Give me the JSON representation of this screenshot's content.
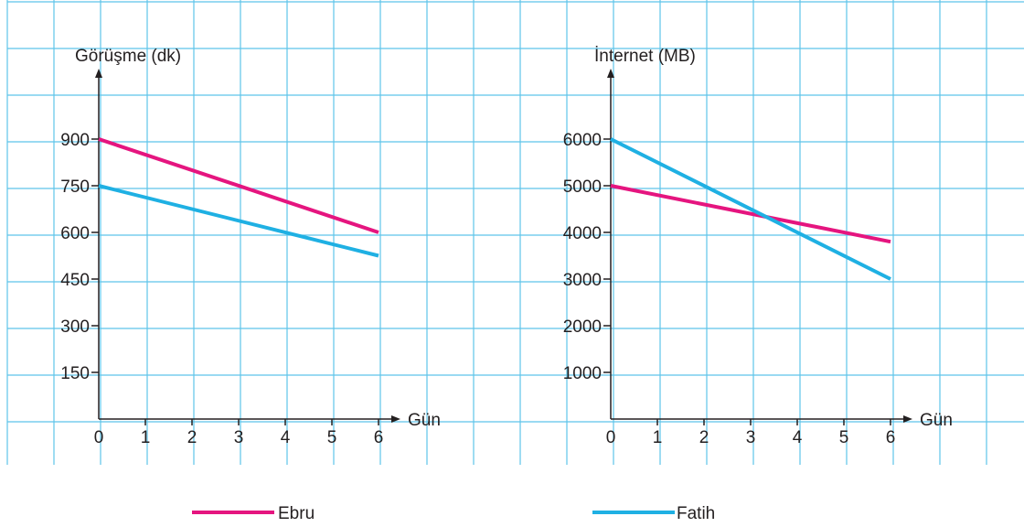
{
  "colors": {
    "grid": "#5ec4ea",
    "axis": "#231f20",
    "ebru": "#e5157f",
    "fatih": "#1fb0e3"
  },
  "chart_data": [
    {
      "type": "line",
      "ylabel": "Görüşme (dk)",
      "xlabel": "Gün",
      "x": [
        0,
        1,
        2,
        3,
        4,
        5,
        6
      ],
      "x_tick_labels": [
        "0",
        "1",
        "2",
        "3",
        "4",
        "5",
        "6"
      ],
      "y_ticks": [
        150,
        300,
        450,
        600,
        750,
        900
      ],
      "y_tick_labels": [
        "150",
        "300",
        "450",
        "600",
        "750",
        "900"
      ],
      "ylim": [
        0,
        1050
      ],
      "xlim": [
        0,
        6.5
      ],
      "series": [
        {
          "name": "Ebru",
          "color_key": "ebru",
          "points": [
            [
              0,
              900
            ],
            [
              6,
              600
            ]
          ]
        },
        {
          "name": "Fatih",
          "color_key": "fatih",
          "points": [
            [
              0,
              750
            ],
            [
              6,
              525
            ]
          ]
        }
      ]
    },
    {
      "type": "line",
      "ylabel": "İnternet (MB)",
      "xlabel": "Gün",
      "x": [
        0,
        1,
        2,
        3,
        4,
        5,
        6
      ],
      "x_tick_labels": [
        "0",
        "1",
        "2",
        "3",
        "4",
        "5",
        "6"
      ],
      "y_ticks": [
        1000,
        2000,
        3000,
        4000,
        5000,
        6000
      ],
      "y_tick_labels": [
        "1000",
        "2000",
        "3000",
        "4000",
        "5000",
        "6000"
      ],
      "ylim": [
        0,
        7000
      ],
      "xlim": [
        0,
        6.5
      ],
      "series": [
        {
          "name": "Ebru",
          "color_key": "ebru",
          "points": [
            [
              0,
              5000
            ],
            [
              6,
              3800
            ]
          ]
        },
        {
          "name": "Fatih",
          "color_key": "fatih",
          "points": [
            [
              0,
              6000
            ],
            [
              6,
              3000
            ]
          ]
        }
      ]
    }
  ],
  "legend": {
    "items": [
      {
        "label": "Ebru",
        "color_key": "ebru"
      },
      {
        "label": "Fatih",
        "color_key": "fatih"
      }
    ]
  }
}
